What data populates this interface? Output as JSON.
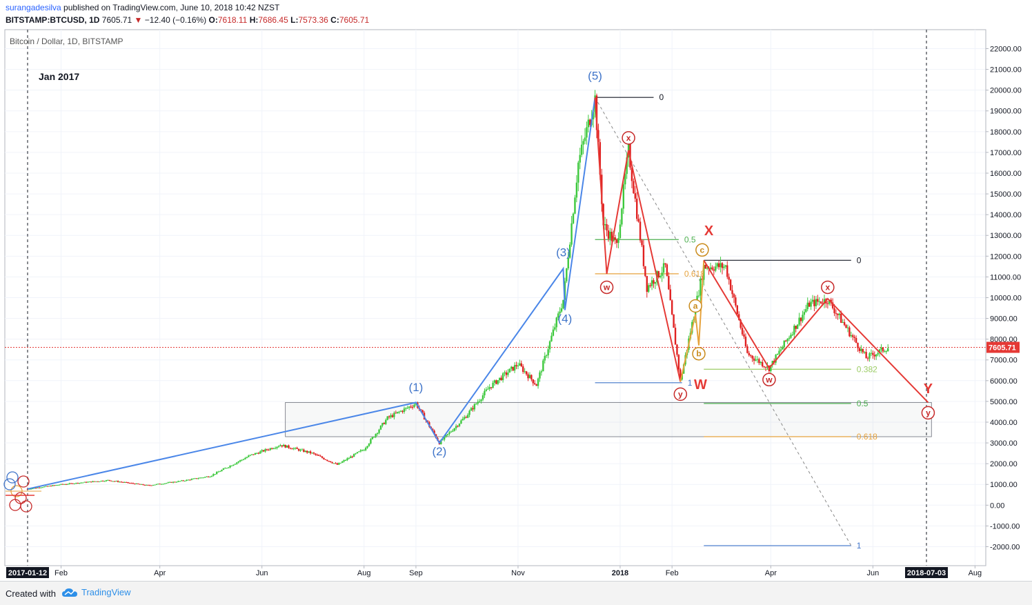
{
  "header": {
    "author": "surangadesilva",
    "published_text": " published on TradingView.com, June 10, 2018 10:42 NZST",
    "symbol": "BITSTAMP:BTCUSD, 1D",
    "last": "7605.71",
    "change": "−12.40 (−0.16%)",
    "ohlc": {
      "o_label": "O:",
      "o": "7618.11",
      "h_label": "H:",
      "h": "7686.45",
      "l_label": "L:",
      "l": "7573.36",
      "c_label": "C:",
      "c": "7605.71"
    }
  },
  "footer": {
    "created_with": "Created with",
    "brand": "TradingView",
    "brand_icon": "tradingview-cloud-icon"
  },
  "chart_data": {
    "type": "candlestick",
    "title": "Bitcoin / Dollar, 1D, BITSTAMP",
    "annotation_date": "Jan 2017",
    "current_price": 7605.71,
    "current_price_label": "7605.71",
    "ylim": [
      -2500,
      23000
    ],
    "y_ticks": [
      "22000.00",
      "21000.00",
      "20000.00",
      "19000.00",
      "18000.00",
      "17000.00",
      "16000.00",
      "15000.00",
      "14000.00",
      "13000.00",
      "12000.00",
      "11000.00",
      "10000.00",
      "9000.00",
      "8000.00",
      "7000.00",
      "6000.00",
      "5000.00",
      "4000.00",
      "3000.00",
      "2000.00",
      "1000.00",
      "0.00",
      "-1000.00",
      "-2000.00"
    ],
    "x_start": "2017-01-12",
    "x_end": "2018-07-03",
    "x_ticks": [
      {
        "date": "2017-02-01",
        "label": "Feb"
      },
      {
        "date": "2017-04-01",
        "label": "Apr"
      },
      {
        "date": "2017-06-01",
        "label": "Jun"
      },
      {
        "date": "2017-08-01",
        "label": "Aug"
      },
      {
        "date": "2017-09-01",
        "label": "Sep"
      },
      {
        "date": "2017-11-01",
        "label": "Nov"
      },
      {
        "date": "2018-01-01",
        "label": "2018"
      },
      {
        "date": "2018-02-01",
        "label": "Feb"
      },
      {
        "date": "2018-04-01",
        "label": "Apr"
      },
      {
        "date": "2018-06-01",
        "label": "Jun"
      },
      {
        "date": "2018-08-01",
        "label": "Aug"
      }
    ],
    "x_highlight_labels": [
      {
        "date": "2017-01-12",
        "label": "2017-01-12"
      },
      {
        "date": "2018-07-03",
        "label": "2018-07-03"
      }
    ],
    "price_path": [
      [
        "2017-01-12",
        780
      ],
      [
        "2017-02-01",
        1000
      ],
      [
        "2017-03-01",
        1200
      ],
      [
        "2017-03-25",
        950
      ],
      [
        "2017-04-15",
        1180
      ],
      [
        "2017-05-01",
        1400
      ],
      [
        "2017-05-25",
        2400
      ],
      [
        "2017-06-12",
        2900
      ],
      [
        "2017-07-01",
        2500
      ],
      [
        "2017-07-16",
        1950
      ],
      [
        "2017-08-01",
        2700
      ],
      [
        "2017-08-15",
        4200
      ],
      [
        "2017-09-01",
        4900
      ],
      [
        "2017-09-15",
        3000
      ],
      [
        "2017-10-01",
        4300
      ],
      [
        "2017-10-15",
        5700
      ],
      [
        "2017-11-01",
        6800
      ],
      [
        "2017-11-12",
        5800
      ],
      [
        "2017-11-28",
        9900
      ],
      [
        "2017-12-07",
        16500
      ],
      [
        "2017-12-17",
        19600
      ],
      [
        "2017-12-22",
        13500
      ],
      [
        "2017-12-30",
        12500
      ],
      [
        "2018-01-06",
        17100
      ],
      [
        "2018-01-17",
        10500
      ],
      [
        "2018-01-28",
        11500
      ],
      [
        "2018-02-06",
        6000
      ],
      [
        "2018-02-20",
        11500
      ],
      [
        "2018-03-05",
        11500
      ],
      [
        "2018-03-18",
        7300
      ],
      [
        "2018-03-31",
        6600
      ],
      [
        "2018-04-24",
        9700
      ],
      [
        "2018-05-05",
        9900
      ],
      [
        "2018-05-28",
        7100
      ],
      [
        "2018-06-10",
        7605
      ]
    ],
    "wave_labels": [
      {
        "label": "(5)",
        "date": "2017-12-17",
        "value": 20500,
        "color": "#3f74c9"
      },
      {
        "label": "(3)",
        "date": "2017-11-28",
        "value": 12000,
        "color": "#3f74c9"
      },
      {
        "label": "(4)",
        "date": "2017-11-29",
        "value": 8800,
        "color": "#3f74c9"
      },
      {
        "label": "(1)",
        "date": "2017-09-01",
        "value": 5500,
        "color": "#3f74c9"
      },
      {
        "label": "(2)",
        "date": "2017-09-15",
        "value": 2400,
        "color": "#3f74c9"
      },
      {
        "label": "X",
        "date": "2018-02-23",
        "value": 13000,
        "color": "#e53935"
      },
      {
        "label": "W",
        "date": "2018-02-18",
        "value": 5600,
        "color": "#e53935"
      },
      {
        "label": "Y",
        "date": "2018-07-04",
        "value": 5400,
        "color": "#e53935"
      }
    ],
    "circle_labels": [
      {
        "label": "x",
        "date": "2018-01-06",
        "value": 17700,
        "color": "#c62828"
      },
      {
        "label": "w",
        "date": "2017-12-24",
        "value": 10500,
        "color": "#c62828"
      },
      {
        "label": "y",
        "date": "2018-02-06",
        "value": 5350,
        "color": "#c62828"
      },
      {
        "label": "c",
        "date": "2018-02-19",
        "value": 12300,
        "color": "#c98a1a"
      },
      {
        "label": "a",
        "date": "2018-02-15",
        "value": 9600,
        "color": "#c98a1a"
      },
      {
        "label": "b",
        "date": "2018-02-17",
        "value": 7300,
        "color": "#c98a1a"
      },
      {
        "label": "w",
        "date": "2018-03-31",
        "value": 6050,
        "color": "#c62828"
      },
      {
        "label": "x",
        "date": "2018-05-05",
        "value": 10500,
        "color": "#c62828"
      },
      {
        "label": "y",
        "date": "2018-07-04",
        "value": 4450,
        "color": "#c62828"
      }
    ],
    "fib_levels": [
      {
        "label": "0",
        "value": 19650,
        "color": "#131722",
        "from": "2017-12-17",
        "to": "2018-01-21"
      },
      {
        "label": "0.5",
        "value": 12800,
        "color": "#4caf50",
        "from": "2017-12-17",
        "to": "2018-02-05"
      },
      {
        "label": "0.618",
        "value": 11150,
        "color": "#e6a23c",
        "from": "2017-12-17",
        "to": "2018-02-05"
      },
      {
        "label": "1",
        "value": 5900,
        "color": "#3f74c9",
        "from": "2017-12-17",
        "to": "2018-02-07"
      },
      {
        "label": "0",
        "value": 11800,
        "color": "#131722",
        "from": "2018-02-20",
        "to": "2018-05-19"
      },
      {
        "label": "0.382",
        "value": 6550,
        "color": "#9ccc65",
        "from": "2018-02-20",
        "to": "2018-05-19"
      },
      {
        "label": "0.5",
        "value": 4900,
        "color": "#4caf50",
        "from": "2018-02-20",
        "to": "2018-05-19"
      },
      {
        "label": "0.618",
        "value": 3300,
        "color": "#e6a23c",
        "from": "2018-02-20",
        "to": "2018-05-19"
      },
      {
        "label": "1",
        "value": -1950,
        "color": "#3f74c9",
        "from": "2018-02-20",
        "to": "2018-05-19"
      }
    ],
    "support_zone": {
      "from": "2017-06-15",
      "to": "2018-07-06",
      "high": 4950,
      "low": 3300
    }
  }
}
